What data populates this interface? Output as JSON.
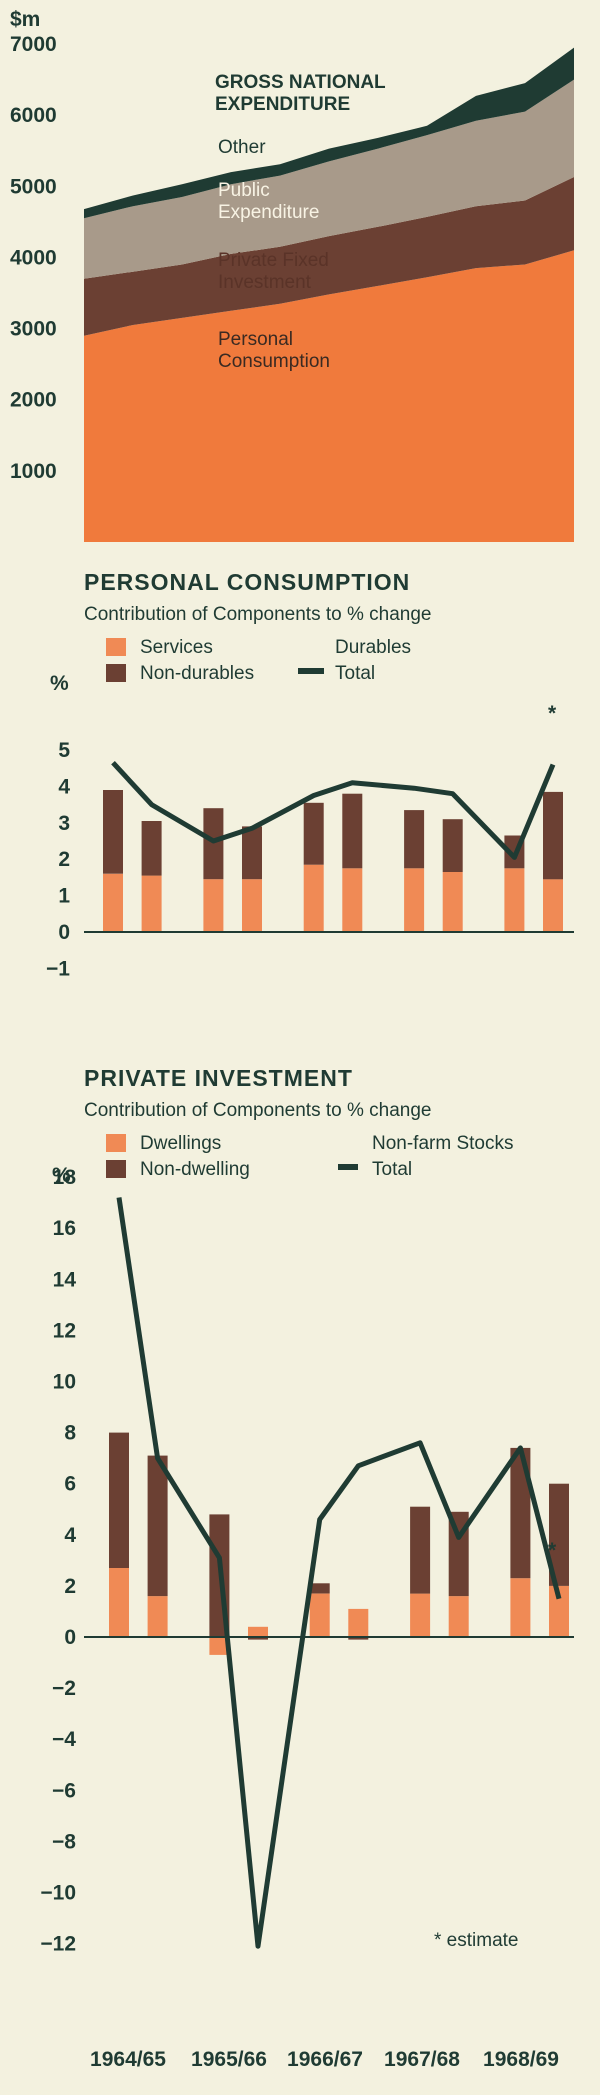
{
  "colors": {
    "background": "#f3f1df",
    "personal": "#f07a3c",
    "private_fixed": "#6b4033",
    "public": "#a89a8a",
    "other": "#1f3b33",
    "services": "#f08a55",
    "nondurables": "#6b4033",
    "total_line": "#1f3b33",
    "text": "#1f3b33"
  },
  "x_axis_labels": [
    "1964/65",
    "1965/66",
    "1966/67",
    "1967/68",
    "1968/69"
  ],
  "chart_data": [
    {
      "type": "area",
      "unit_label": "$m",
      "ylim": [
        0,
        7000
      ],
      "yticks": [
        1000,
        2000,
        3000,
        4000,
        5000,
        6000,
        7000
      ],
      "x": [
        0,
        1,
        2,
        3,
        4,
        5,
        6,
        7,
        8,
        9,
        10
      ],
      "labels": {
        "gne": "GROSS NATIONAL EXPENDITURE",
        "other": "Other",
        "public": "Public Expenditure",
        "private_fixed": "Private Fixed Investment",
        "personal": "Personal Consumption"
      },
      "series": [
        {
          "name": "Personal Consumption",
          "values": [
            2900,
            3050,
            3150,
            3250,
            3350,
            3480,
            3600,
            3720,
            3850,
            3900,
            4100
          ]
        },
        {
          "name": "Private Fixed Investment",
          "values": [
            800,
            750,
            750,
            800,
            800,
            820,
            830,
            850,
            870,
            900,
            1030
          ]
        },
        {
          "name": "Public Expenditure",
          "values": [
            850,
            920,
            950,
            980,
            1000,
            1050,
            1100,
            1150,
            1200,
            1250,
            1370
          ]
        },
        {
          "name": "Other",
          "values": [
            130,
            150,
            180,
            170,
            160,
            180,
            150,
            130,
            350,
            400,
            450
          ]
        }
      ]
    },
    {
      "type": "bar",
      "title": "PERSONAL CONSUMPTION",
      "subtitle": "Contribution of Components to % change",
      "ylabel": "%",
      "ylim": [
        -1.4,
        5
      ],
      "yticks": [
        5,
        4,
        3,
        2,
        1,
        0,
        -1
      ],
      "ytick_labels": [
        "5",
        "4",
        "3",
        "2",
        "1",
        "0",
        "−1"
      ],
      "legend": [
        "Services",
        "Durables",
        "Non-durables",
        "Total"
      ],
      "x_positions": [
        0,
        1,
        2.6,
        3.6,
        5.2,
        6.2,
        7.8,
        8.8,
        10.4,
        11.4
      ],
      "series": [
        {
          "name": "Services",
          "values": [
            1.6,
            1.55,
            1.45,
            1.45,
            1.85,
            1.75,
            1.75,
            1.65,
            1.75,
            1.45
          ]
        },
        {
          "name": "Non-durables",
          "values": [
            2.3,
            1.5,
            1.95,
            1.45,
            1.7,
            2.05,
            1.6,
            1.45,
            0.9,
            2.4
          ]
        },
        {
          "name": "Total",
          "values": [
            4.65,
            3.5,
            2.5,
            2.85,
            3.75,
            4.1,
            3.95,
            3.8,
            2.05,
            4.6
          ]
        }
      ],
      "annotation": "*"
    },
    {
      "type": "bar",
      "title": "PRIVATE INVESTMENT",
      "subtitle": "Contribution of Components to % change",
      "ylabel": "%",
      "ylim": [
        -12.5,
        18
      ],
      "yticks": [
        18,
        16,
        14,
        12,
        10,
        8,
        6,
        4,
        2,
        0,
        -2,
        -4,
        -6,
        -8,
        -10,
        -12
      ],
      "ytick_labels": [
        "18",
        "16",
        "14",
        "12",
        "10",
        "8",
        "6",
        "4",
        "2",
        "0",
        "−2",
        "−4",
        "−6",
        "−8",
        "−10",
        "−12"
      ],
      "legend": [
        "Dwellings",
        "Non-farm Stocks",
        "Non-dwelling",
        "Total"
      ],
      "x_positions": [
        0,
        1,
        2.6,
        3.6,
        5.2,
        6.2,
        7.8,
        8.8,
        10.4,
        11.4
      ],
      "series": [
        {
          "name": "Dwellings",
          "values": [
            2.7,
            1.6,
            -0.7,
            0.4,
            1.7,
            1.1,
            1.7,
            1.6,
            2.3,
            2.0
          ]
        },
        {
          "name": "Non-dwelling",
          "values": [
            5.3,
            5.5,
            4.8,
            -0.1,
            0.4,
            -0.1,
            3.4,
            3.3,
            5.1,
            4.0
          ]
        },
        {
          "name": "Total",
          "values": [
            17.2,
            7.0,
            3.1,
            -12.1,
            4.6,
            6.7,
            7.6,
            3.9,
            7.4,
            1.5
          ]
        }
      ],
      "annotation": "* estimate"
    }
  ]
}
